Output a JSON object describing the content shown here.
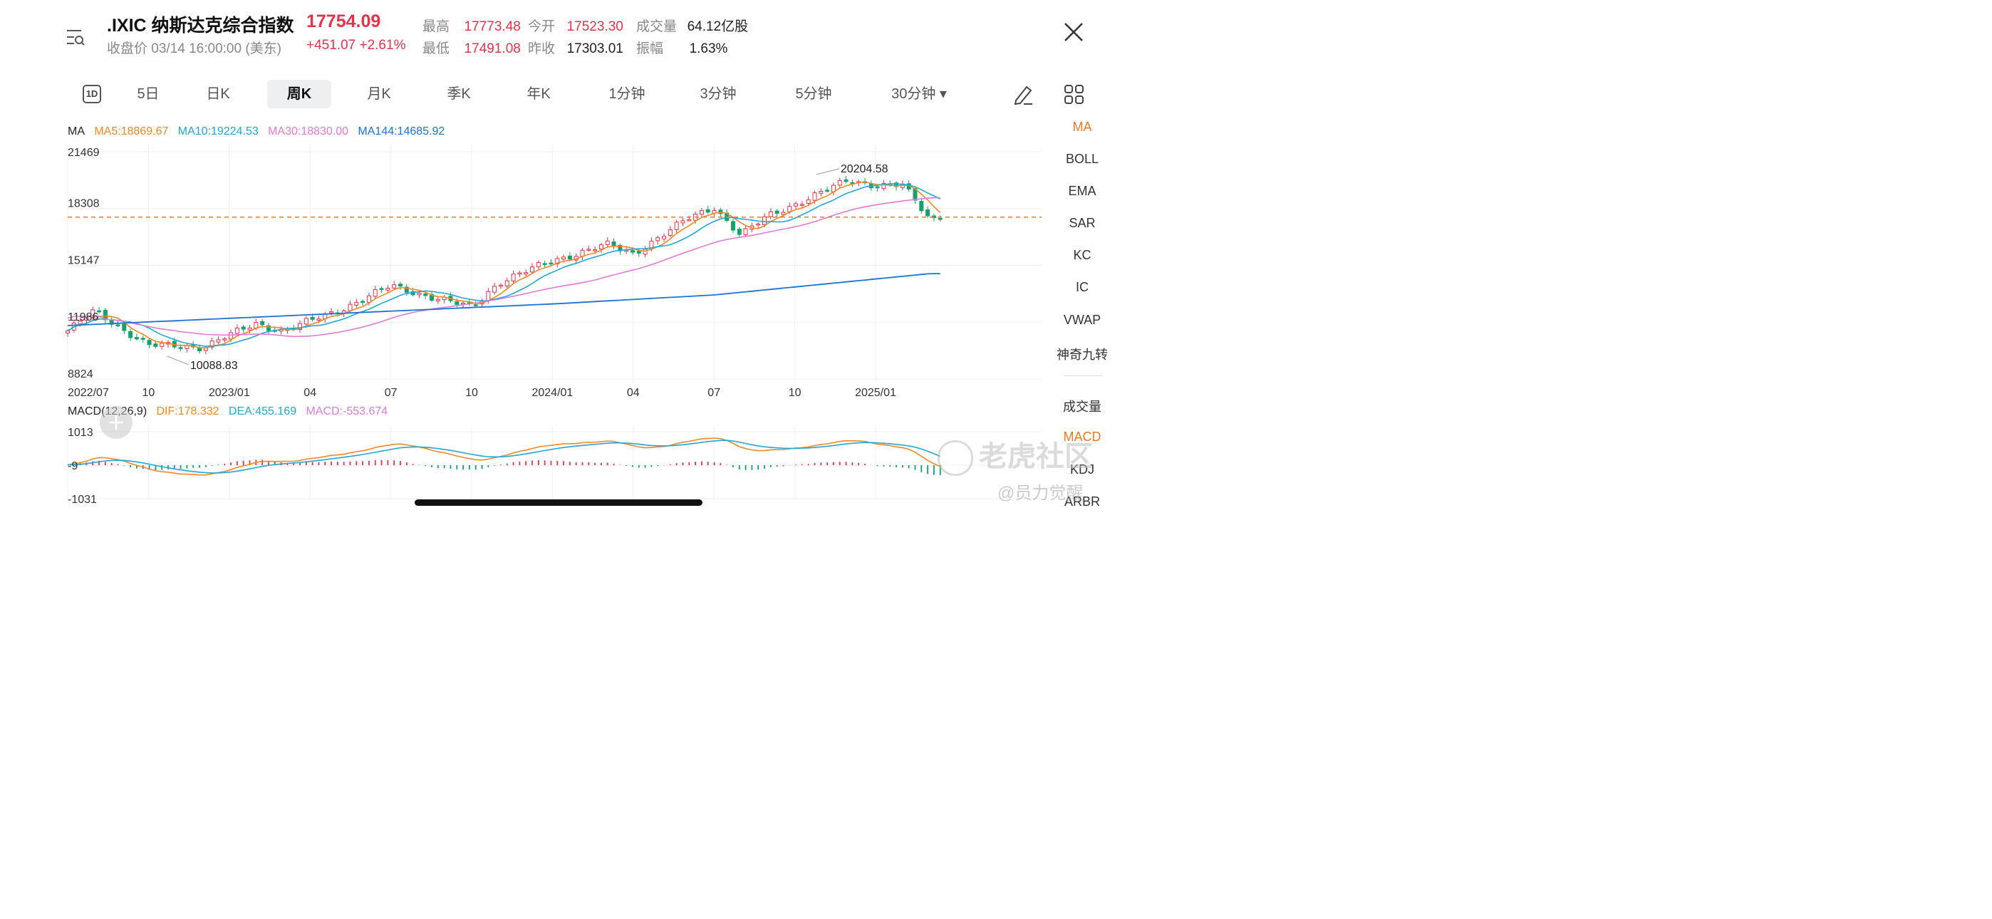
{
  "header": {
    "name": ".IXIC 纳斯达克综合指数",
    "price": "17754.09",
    "sub": "收盘价 03/14 16:00:00 (美东)",
    "change": "+451.07 +2.61%",
    "stats": [
      {
        "label": "最高",
        "value": "17773.48",
        "color": "red"
      },
      {
        "label": "今开",
        "value": "17523.30",
        "color": "red"
      },
      {
        "label": "成交量",
        "value": "64.12亿股",
        "color": "black"
      },
      {
        "label": "最低",
        "value": "17491.08",
        "color": "red"
      },
      {
        "label": "昨收",
        "value": "17303.01",
        "color": "black"
      },
      {
        "label": "振幅",
        "value": "1.63%",
        "color": "black"
      }
    ]
  },
  "tabs": [
    {
      "label": "5日"
    },
    {
      "label": "日K"
    },
    {
      "label": "周K",
      "active": true
    },
    {
      "label": "月K"
    },
    {
      "label": "季K"
    },
    {
      "label": "年K"
    },
    {
      "label": "1分钟"
    },
    {
      "label": "3分钟"
    },
    {
      "label": "5分钟"
    },
    {
      "label": "30分钟 ▾"
    }
  ],
  "icons": {
    "menu": "list-search-icon",
    "close": "close-icon",
    "period": "1D",
    "draw": "pencil-icon",
    "grid": "grid-icon",
    "add": "plus-icon"
  },
  "side_indicators": [
    "MA",
    "BOLL",
    "EMA",
    "SAR",
    "KC",
    "IC",
    "VWAP",
    "神奇九转",
    "成交量",
    "MACD",
    "KDJ",
    "ARBR"
  ],
  "ma_legend": {
    "title": "MA",
    "items": [
      {
        "text": "MA5:18869.67",
        "color": "#f08a24"
      },
      {
        "text": "MA10:19224.53",
        "color": "#22a7d8"
      },
      {
        "text": "MA30:18830.00",
        "color": "#e37ad8"
      },
      {
        "text": "MA144:14685.92",
        "color": "#1a73d9"
      }
    ]
  },
  "macd_legend": {
    "title": "MACD(12,26,9)",
    "items": [
      {
        "text": "DIF:178.332",
        "color": "#f08a24"
      },
      {
        "text": "DEA:455.169",
        "color": "#22a7d8"
      },
      {
        "text": "MACD:-553.674",
        "color": "#e37ad8"
      }
    ]
  },
  "chart_data": {
    "type": "candlestick",
    "y_ticks": [
      "21469",
      "18308",
      "15147",
      "11986",
      "8824"
    ],
    "ylim": [
      8824,
      21469
    ],
    "x_ticks": [
      "2022/07",
      "10",
      "2023/01",
      "04",
      "07",
      "10",
      "2024/01",
      "04",
      "07",
      "10",
      "2025/01"
    ],
    "current_price": 17754.09,
    "annotations": [
      {
        "text": "20204.58",
        "value": 20204.58,
        "type": "high"
      },
      {
        "text": "10088.83",
        "value": 10088.83,
        "type": "low"
      }
    ],
    "price_anchors": [
      [
        "2022/07",
        11500
      ],
      [
        "2022/08",
        12600
      ],
      [
        "2022/10",
        10700
      ],
      [
        "2022/12",
        10600
      ],
      [
        "2023/02",
        11900
      ],
      [
        "2023/03",
        11500
      ],
      [
        "2023/05",
        12600
      ],
      [
        "2023/07",
        14000
      ],
      [
        "2023/08",
        13600
      ],
      [
        "2023/10",
        12800
      ],
      [
        "2023/11",
        14200
      ],
      [
        "2024/01",
        15400
      ],
      [
        "2024/03",
        16300
      ],
      [
        "2024/04",
        15800
      ],
      [
        "2024/06",
        17700
      ],
      [
        "2024/07",
        18400
      ],
      [
        "2024/08",
        16800
      ],
      [
        "2024/09",
        17900
      ],
      [
        "2024/11",
        19200
      ],
      [
        "2024/12",
        19900
      ],
      [
        "2025/01",
        19600
      ],
      [
        "2025/02",
        19600
      ],
      [
        "2025/03",
        17754
      ]
    ],
    "ma144_anchors": [
      [
        "2022/07",
        11800
      ],
      [
        "2023/01",
        12200
      ],
      [
        "2023/07",
        12600
      ],
      [
        "2024/01",
        13000
      ],
      [
        "2024/07",
        13500
      ],
      [
        "2025/03",
        14686
      ]
    ],
    "macd": {
      "y_ticks": [
        "1013",
        "-9",
        "-1031"
      ],
      "ylim": [
        -1031,
        1013
      ],
      "dif_last": 178.332,
      "dea_last": 455.169,
      "macd_last": -553.674
    }
  },
  "watermark": {
    "brand": "老虎社区",
    "user": "@员力觉醒"
  }
}
